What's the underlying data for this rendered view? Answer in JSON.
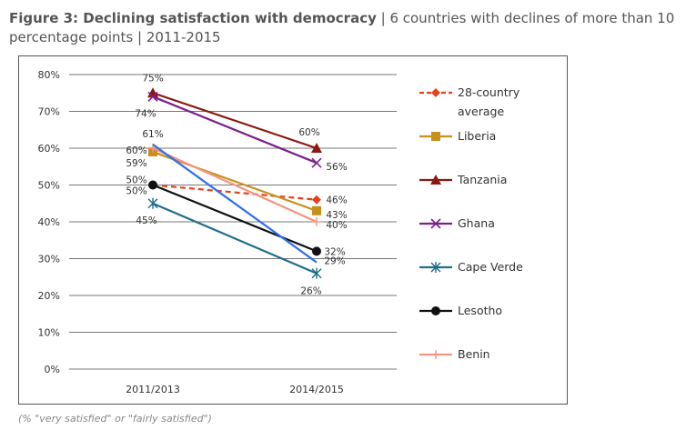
{
  "header": {
    "title_bold": "Figure 3: Declining satisfaction with democracy",
    "title_rest": " | 6 countries with declines of more than 10 percentage points | 2011-2015"
  },
  "footnote": "(% \"very satisfied\" or \"fairly satisfied\")",
  "chart_data": {
    "type": "line",
    "categories": [
      "2011/2013",
      "2014/2015"
    ],
    "ylim": [
      0,
      80
    ],
    "yticks": [
      "0%",
      "10%",
      "20%",
      "30%",
      "40%",
      "50%",
      "60%",
      "70%",
      "80%"
    ],
    "legend_position": "right",
    "grid": "horizontal",
    "series": [
      {
        "name": "28-country average",
        "values": [
          50,
          46
        ],
        "color": "#e8401c",
        "marker": "diamond",
        "dashed": true
      },
      {
        "name": "Liberia",
        "values": [
          59,
          43
        ],
        "color": "#c8901a",
        "marker": "square",
        "dashed": false
      },
      {
        "name": "Tanzania",
        "values": [
          75,
          60
        ],
        "color": "#8b1a0e",
        "marker": "triangle",
        "dashed": false
      },
      {
        "name": "Ghana",
        "values": [
          74,
          56
        ],
        "color": "#7a1f8c",
        "marker": "x",
        "dashed": false
      },
      {
        "name": "Cape Verde",
        "values": [
          45,
          26
        ],
        "color": "#1f6e8c",
        "marker": "asterisk",
        "dashed": false
      },
      {
        "name": "Lesotho",
        "values": [
          50,
          32
        ],
        "color": "#111111",
        "marker": "circle",
        "dashed": false
      },
      {
        "name": "Benin",
        "values": [
          60,
          40
        ],
        "color": "#f5937f",
        "marker": "plus",
        "dashed": false
      },
      {
        "name": "",
        "values": [
          61,
          29
        ],
        "color": "#2f6ff0",
        "marker": "none",
        "dashed": false
      }
    ],
    "data_labels": [
      {
        "text": "75%",
        "value": 75,
        "cat": 0
      },
      {
        "text": "74%",
        "value": 74,
        "cat": 0
      },
      {
        "text": "61%",
        "value": 61,
        "cat": 0
      },
      {
        "text": "60%",
        "value": 60,
        "cat": 0
      },
      {
        "text": "59%",
        "value": 59,
        "cat": 0
      },
      {
        "text": "50%",
        "value": 50,
        "cat": 0
      },
      {
        "text": "50%",
        "value": 50,
        "cat": 0
      },
      {
        "text": "45%",
        "value": 45,
        "cat": 0
      },
      {
        "text": "60%",
        "value": 60,
        "cat": 1
      },
      {
        "text": "56%",
        "value": 56,
        "cat": 1
      },
      {
        "text": "46%",
        "value": 46,
        "cat": 1
      },
      {
        "text": "43%",
        "value": 43,
        "cat": 1
      },
      {
        "text": "40%",
        "value": 40,
        "cat": 1
      },
      {
        "text": "32%",
        "value": 32,
        "cat": 1
      },
      {
        "text": "29%",
        "value": 29,
        "cat": 1
      },
      {
        "text": "26%",
        "value": 26,
        "cat": 1
      }
    ]
  }
}
